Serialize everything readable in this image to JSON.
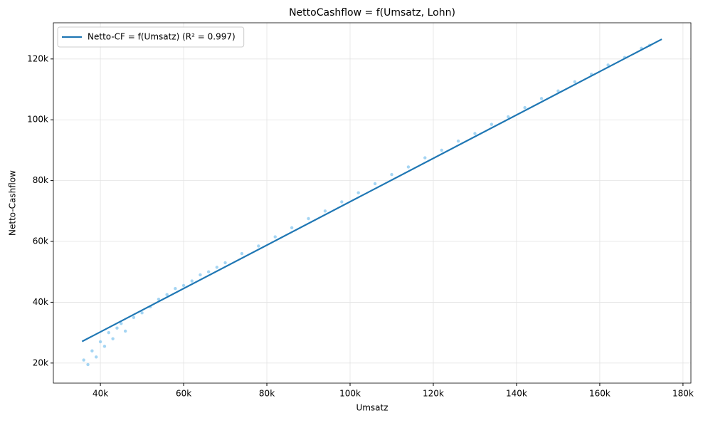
{
  "chart_data": {
    "type": "scatter",
    "title": "NettoCashflow = f(Umsatz, Lohn)",
    "x_label": "Umsatz",
    "y_label": "Netto-Cashflow",
    "x": [
      36000,
      37000,
      38000,
      39000,
      40000,
      41000,
      42000,
      43000,
      44000,
      45000,
      46000,
      48000,
      50000,
      52000,
      54000,
      56000,
      58000,
      60000,
      62000,
      64000,
      66000,
      68000,
      70000,
      74000,
      78000,
      82000,
      86000,
      90000,
      94000,
      98000,
      102000,
      106000,
      110000,
      114000,
      118000,
      122000,
      126000,
      130000,
      134000,
      138000,
      142000,
      146000,
      150000,
      154000,
      158000,
      162000,
      166000,
      170000,
      172000
    ],
    "y": [
      21000,
      19500,
      24000,
      22000,
      27000,
      25500,
      30000,
      28000,
      31500,
      33000,
      30500,
      35000,
      36500,
      38500,
      41000,
      42500,
      44500,
      45500,
      47000,
      49000,
      50000,
      51500,
      53000,
      56000,
      58500,
      61500,
      64500,
      67500,
      70000,
      73000,
      76000,
      79000,
      82000,
      84500,
      87500,
      90000,
      93000,
      95500,
      98500,
      101000,
      104000,
      107000,
      109500,
      112500,
      115000,
      118000,
      120500,
      123500,
      124500
    ],
    "color": "#8ecbf0",
    "fit": {
      "name": "Netto-CF = f(Umsatz) (R² = 0.997)",
      "color": "#1f77b4",
      "x": [
        35600,
        174900
      ],
      "y": [
        27100,
        126500
      ]
    },
    "xlim": [
      28700,
      181900
    ],
    "ylim": [
      13400,
      131900
    ],
    "xticks": [
      {
        "value": 40000,
        "label": "40k"
      },
      {
        "value": 60000,
        "label": "60k"
      },
      {
        "value": 80000,
        "label": "80k"
      },
      {
        "value": 100000,
        "label": "100k"
      },
      {
        "value": 120000,
        "label": "120k"
      },
      {
        "value": 140000,
        "label": "140k"
      },
      {
        "value": 160000,
        "label": "160k"
      },
      {
        "value": 180000,
        "label": "180k"
      }
    ],
    "yticks": [
      {
        "value": 20000,
        "label": "20k"
      },
      {
        "value": 40000,
        "label": "40k"
      },
      {
        "value": 60000,
        "label": "60k"
      },
      {
        "value": 80000,
        "label": "80k"
      },
      {
        "value": 100000,
        "label": "100k"
      },
      {
        "value": 120000,
        "label": "120k"
      }
    ],
    "grid": true,
    "legend": "upper left"
  }
}
